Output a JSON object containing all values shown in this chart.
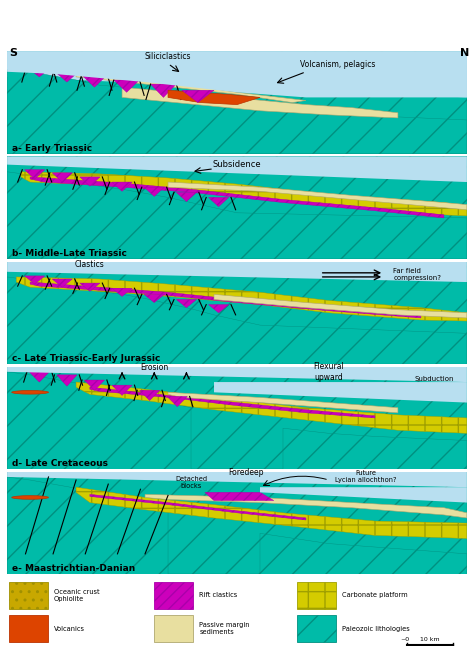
{
  "panel_labels": [
    "a- Early Triassic",
    "b- Middle-Late Triassic",
    "c- Late Triassic-Early Jurassic",
    "d- Late Cretaceous",
    "e- Maastrichtian-Danian"
  ],
  "colors": {
    "oceanic_crust": "#c8a800",
    "volcanics": "#dd4400",
    "rift_clastics": "#cc00bb",
    "passive_margin": "#e8dfa0",
    "carbonate_platform": "#d4cc00",
    "paleozoic": "#00bba8",
    "water": "#b8dff0",
    "black": "#000000",
    "white": "#ffffff"
  }
}
